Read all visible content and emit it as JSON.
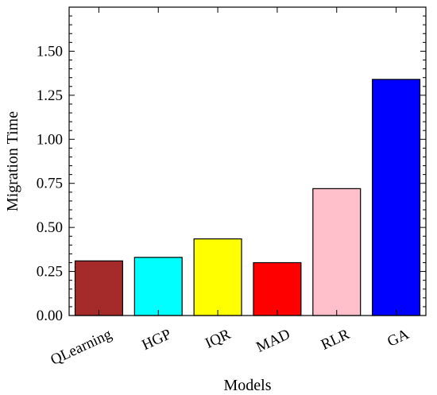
{
  "chart_data": {
    "type": "bar",
    "title": "",
    "xlabel": "Models",
    "ylabel": "Migration Time",
    "categories": [
      "QLearning",
      "HGP",
      "IQR",
      "MAD",
      "RLR",
      "GA"
    ],
    "values": [
      0.31,
      0.33,
      0.435,
      0.3,
      0.72,
      1.34
    ],
    "colors": [
      "#a52a2a",
      "#00ffff",
      "#ffff00",
      "#ff0000",
      "#ffc0cb",
      "#0000ff"
    ],
    "ylim": [
      0,
      1.75
    ],
    "yticks": [
      0.0,
      0.25,
      0.5,
      0.75,
      1.0,
      1.25,
      1.5
    ],
    "ytick_labels": [
      "0.00",
      "0.25",
      "0.50",
      "0.75",
      "1.00",
      "1.25",
      "1.50"
    ],
    "grid": false,
    "legend": "none"
  }
}
